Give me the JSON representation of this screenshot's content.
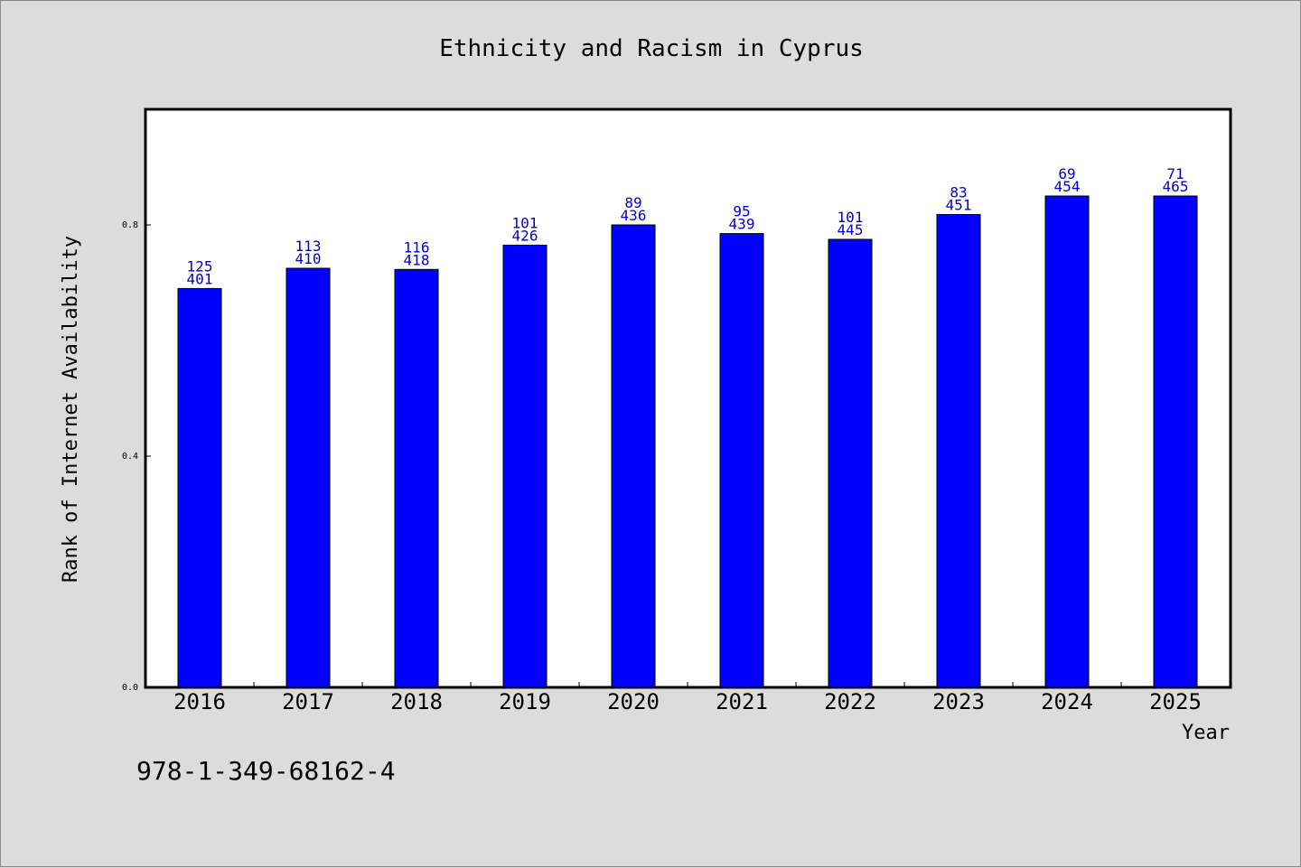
{
  "chart_data": {
    "type": "bar",
    "title": "Ethnicity and Racism in Cyprus",
    "xlabel": "Year",
    "ylabel": "Rank of Internet Availability",
    "categories": [
      "2016",
      "2017",
      "2018",
      "2019",
      "2020",
      "2021",
      "2022",
      "2023",
      "2024",
      "2025"
    ],
    "values": [
      0.69,
      0.725,
      0.723,
      0.765,
      0.8,
      0.785,
      0.775,
      0.818,
      0.85,
      0.85
    ],
    "bar_labels": [
      [
        "125",
        "401"
      ],
      [
        "113",
        "410"
      ],
      [
        "116",
        "418"
      ],
      [
        "101",
        "426"
      ],
      [
        "89",
        "436"
      ],
      [
        "95",
        "439"
      ],
      [
        "101",
        "445"
      ],
      [
        "83",
        "451"
      ],
      [
        "69",
        "454"
      ],
      [
        "71",
        "465"
      ]
    ],
    "ylim": [
      0,
      1.0
    ],
    "yticks": [
      0.0,
      0.4,
      0.8
    ],
    "ytick_labels": [
      "0.0",
      "0.4",
      "0.8"
    ],
    "grid": false,
    "colors": {
      "bar": "#0000ff",
      "bar_label": "#0000cc",
      "background": "#dcdcdc",
      "plot_background": "#ffffff"
    }
  },
  "footer": {
    "isbn": "978-1-349-68162-4"
  }
}
